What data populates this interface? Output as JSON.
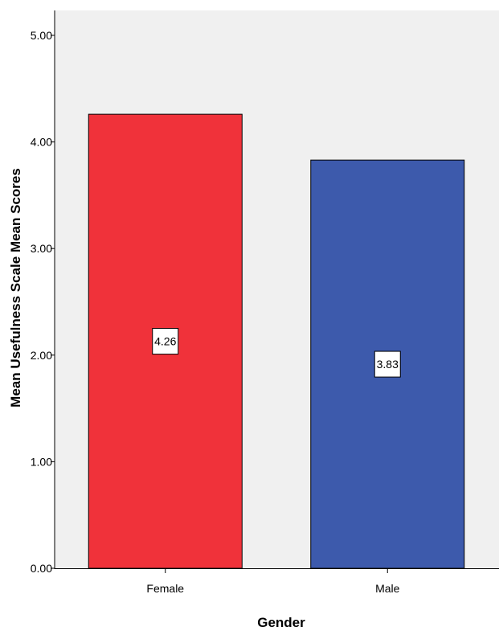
{
  "chart_data": {
    "type": "bar",
    "categories": [
      "Female",
      "Male"
    ],
    "values": [
      4.26,
      3.83
    ],
    "data_labels": [
      "4.26",
      "3.83"
    ],
    "bar_colors": [
      "#f0323a",
      "#3d5aac"
    ],
    "plot_background": "#f0f0f0",
    "xlabel": "Gender",
    "ylabel": "Mean Usefulness Scale Mean Scores",
    "ylim": [
      0,
      5.25
    ],
    "yticks": [
      0,
      1,
      2,
      3,
      4,
      5
    ],
    "ytick_labels": [
      "0.00",
      "1.00",
      "2.00",
      "3.00",
      "4.00",
      "5.00"
    ],
    "grid": false,
    "legend": "none"
  }
}
